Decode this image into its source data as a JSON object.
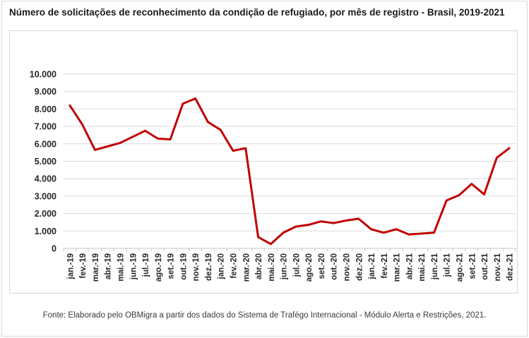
{
  "title": "Número de solicitações de reconhecimento da condição de refugiado, por mês de registro - Brasil, 2019-2021",
  "footer": "Fonte: Elaborado pelo OBMigra a partir dos dados do Sistema de Trafégo Internacional - Módulo Alerta e Restrições, 2021.",
  "colors": {
    "line": "#c00000",
    "grid": "#d9d9d9",
    "axis": "#c6c6c6",
    "tick_label": "#262626",
    "box_border": "#d6d6d6"
  },
  "chart_data": {
    "type": "line",
    "title": "Número de solicitações de reconhecimento da condição de refugiado, por mês de registro - Brasil, 2019-2021",
    "xlabel": "",
    "ylabel": "",
    "ylim": [
      0,
      10000
    ],
    "grid": "horizontal",
    "legend": "none",
    "y_ticks": [
      "0",
      "1.000",
      "2.000",
      "3.000",
      "4.000",
      "5.000",
      "6.000",
      "7.000",
      "8.000",
      "9.000",
      "10.000"
    ],
    "categories": [
      "jan.-19",
      "fev.-19",
      "mar.-19",
      "abr.-19",
      "mai.-19",
      "jun.-19",
      "jul.-19",
      "ago.-19",
      "set.-19",
      "out.-19",
      "nov.-19",
      "dez.-19",
      "jan.-20",
      "fev.-20",
      "mar.-20",
      "abr.-20",
      "mai.-20",
      "jun.-20",
      "jul.-20",
      "ago.-20",
      "set.-20",
      "out.-20",
      "nov.-20",
      "dez.-20",
      "jan.-21",
      "fev.-21",
      "mar.-21",
      "abr.-21",
      "mai.-21",
      "jun.-21",
      "jul.-21",
      "ago.-21",
      "set.-21",
      "out.-21",
      "nov.-21",
      "dez.-21"
    ],
    "series": [
      {
        "name": "Solicitações de reconhecimento da condição de refugiado",
        "color": "#c00000",
        "values": [
          8200,
          7100,
          5650,
          5850,
          6050,
          6400,
          6750,
          6300,
          6250,
          8300,
          8600,
          7250,
          6800,
          5600,
          5750,
          650,
          250,
          900,
          1250,
          1350,
          1550,
          1450,
          1600,
          1700,
          1100,
          900,
          1100,
          800,
          850,
          900,
          2750,
          3050,
          3700,
          3100,
          5200,
          5750
        ]
      }
    ]
  }
}
